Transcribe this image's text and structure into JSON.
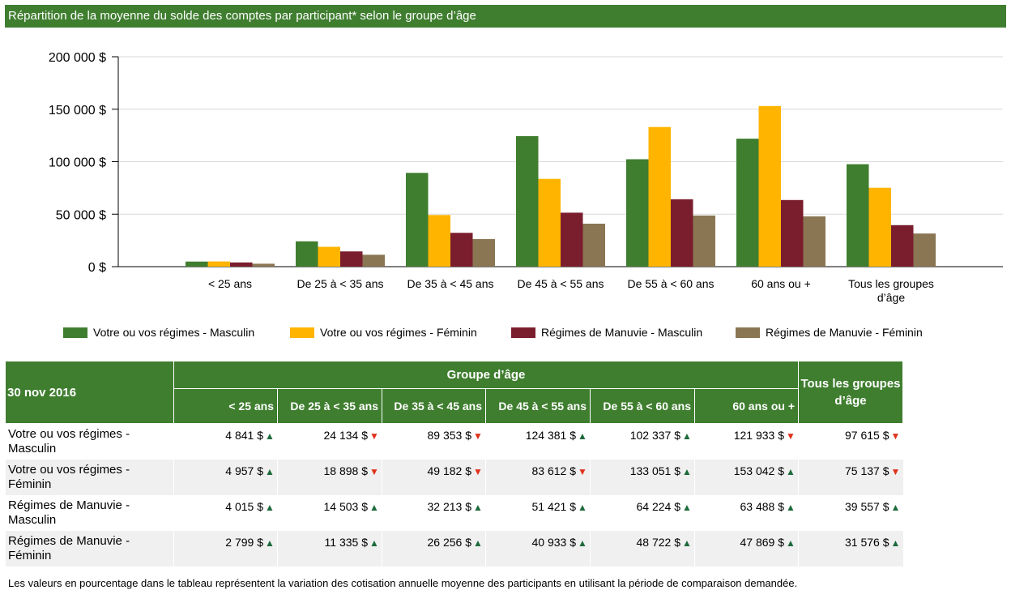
{
  "title": "Répartition de la moyenne du solde des comptes par participant* selon le groupe d’âge",
  "colors": {
    "header_green": "#3f7e2f",
    "series": [
      "#3f7e2f",
      "#ffb400",
      "#7a1e2e",
      "#8a7653"
    ],
    "arrow_up": "#1d6b3c",
    "arrow_down": "#e0321c"
  },
  "chart_data": {
    "type": "bar",
    "title": "",
    "xlabel": "",
    "ylabel": "",
    "ylim": [
      0,
      200000
    ],
    "yticks": [
      0,
      50000,
      100000,
      150000,
      200000
    ],
    "ytick_labels": [
      "0 $",
      "50 000 $",
      "100 000 $",
      "150 000 $",
      "200 000 $"
    ],
    "grid": true,
    "legend_position": "bottom",
    "categories": [
      "< 25 ans",
      "De 25 à < 35 ans",
      "De 35 à < 45 ans",
      "De 45 à < 55 ans",
      "De 55 à < 60 ans",
      "60 ans ou +",
      "Tous les groupes d’âge"
    ],
    "series": [
      {
        "name": "Votre ou vos régimes - Masculin",
        "values": [
          4841,
          24134,
          89353,
          124381,
          102337,
          121933,
          97615
        ]
      },
      {
        "name": "Votre ou vos régimes - Féminin",
        "values": [
          4957,
          18898,
          49182,
          83612,
          133051,
          153042,
          75137
        ]
      },
      {
        "name": "Régimes de Manuvie - Masculin",
        "values": [
          4015,
          14503,
          32213,
          51421,
          64224,
          63488,
          39557
        ]
      },
      {
        "name": "Régimes de Manuvie - Féminin",
        "values": [
          2799,
          11335,
          26256,
          40933,
          48722,
          47869,
          31576
        ]
      }
    ]
  },
  "table": {
    "date": "30 nov 2016",
    "group_header": "Groupe d’âge",
    "all_header": "Tous les groupes d’âge",
    "age_columns": [
      "< 25 ans",
      "De 25 à < 35 ans",
      "De 35 à < 45 ans",
      "De 45 à < 55 ans",
      "De 55 à < 60 ans",
      "60 ans ou +"
    ],
    "rows": [
      {
        "label": "Votre ou vos régimes - Masculin",
        "cells": [
          {
            "v": "4 841 $",
            "d": "up"
          },
          {
            "v": "24 134 $",
            "d": "down"
          },
          {
            "v": "89 353 $",
            "d": "down"
          },
          {
            "v": "124 381 $",
            "d": "up"
          },
          {
            "v": "102 337 $",
            "d": "up"
          },
          {
            "v": "121 933 $",
            "d": "down"
          },
          {
            "v": "97 615 $",
            "d": "down"
          }
        ]
      },
      {
        "label": "Votre ou vos régimes - Féminin",
        "cells": [
          {
            "v": "4 957 $",
            "d": "up"
          },
          {
            "v": "18 898 $",
            "d": "down"
          },
          {
            "v": "49 182 $",
            "d": "down"
          },
          {
            "v": "83 612 $",
            "d": "down"
          },
          {
            "v": "133 051 $",
            "d": "up"
          },
          {
            "v": "153 042 $",
            "d": "up"
          },
          {
            "v": "75 137 $",
            "d": "down"
          }
        ]
      },
      {
        "label": "Régimes de Manuvie - Masculin",
        "cells": [
          {
            "v": "4 015 $",
            "d": "up"
          },
          {
            "v": "14 503 $",
            "d": "up"
          },
          {
            "v": "32 213 $",
            "d": "up"
          },
          {
            "v": "51 421 $",
            "d": "up"
          },
          {
            "v": "64 224 $",
            "d": "up"
          },
          {
            "v": "63 488 $",
            "d": "up"
          },
          {
            "v": "39 557 $",
            "d": "up"
          }
        ]
      },
      {
        "label": "Régimes de Manuvie - Féminin",
        "cells": [
          {
            "v": "2 799 $",
            "d": "up"
          },
          {
            "v": "11 335 $",
            "d": "up"
          },
          {
            "v": "26 256 $",
            "d": "up"
          },
          {
            "v": "40 933 $",
            "d": "up"
          },
          {
            "v": "48 722 $",
            "d": "up"
          },
          {
            "v": "47 869 $",
            "d": "up"
          },
          {
            "v": "31 576 $",
            "d": "up"
          }
        ]
      }
    ]
  },
  "footnote": "Les valeurs en pourcentage dans le tableau représentent la variation des cotisation annuelle moyenne des participants en utilisant la période de comparaison demandée."
}
